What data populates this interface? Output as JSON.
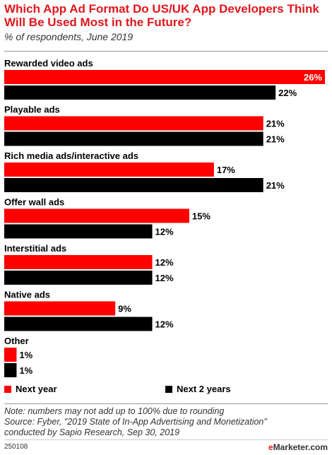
{
  "header": {
    "title": "Which App Ad Format Do US/UK App Developers Think Will Be Used Most in the Future?",
    "subtitle": "% of respondents, June 2019"
  },
  "colors": {
    "accent": "#e1161c",
    "next_year": "#ff0000",
    "next_2_years": "#000000"
  },
  "chart_data": {
    "type": "bar",
    "orientation": "horizontal",
    "unit": "%",
    "categories": [
      "Rewarded video ads",
      "Playable ads",
      "Rich media ads/interactive ads",
      "Offer wall ads",
      "Interstitial ads",
      "Native ads",
      "Other"
    ],
    "series": [
      {
        "name": "Next year",
        "values": [
          26,
          21,
          17,
          15,
          12,
          9,
          1
        ]
      },
      {
        "name": "Next 2 years",
        "values": [
          22,
          21,
          21,
          12,
          12,
          12,
          1
        ]
      }
    ],
    "xlim": [
      0,
      26
    ],
    "grid": false,
    "legend_position": "bottom-left"
  },
  "footer": {
    "notes": [
      "Note: numbers may not add up to 100% due to rounding",
      "Source: Fyber, \"2019 State of In-App Advertising and Monetization\"",
      "conducted by Sapio Research, Sep 30, 2019"
    ],
    "chart_id": "250108",
    "brand_prefix": "e",
    "brand_name": "Marketer",
    "brand_suffix": ".com"
  }
}
